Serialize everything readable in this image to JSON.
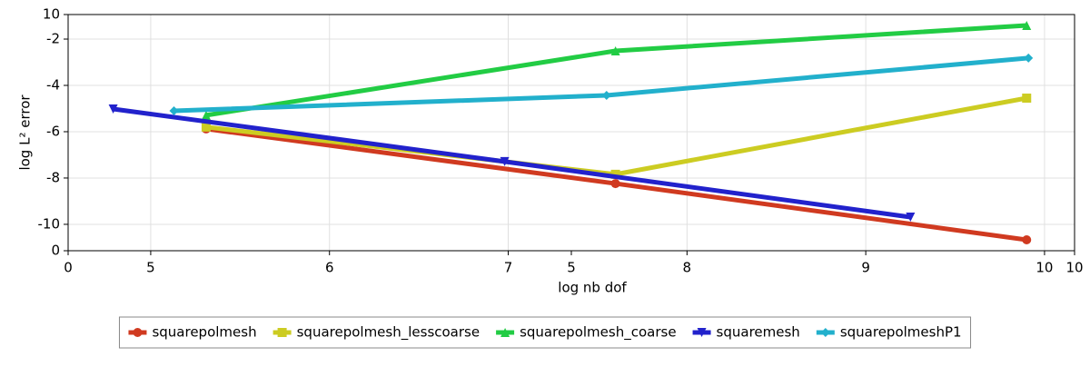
{
  "chart_data": {
    "type": "line",
    "xlabel": "log nb dof",
    "ylabel": "log L² error",
    "xlim": [
      4.538,
      10.168
    ],
    "xticks": [
      5,
      6,
      7,
      8,
      9,
      10
    ],
    "ylim": [
      -11.14,
      -0.94
    ],
    "yticks": [
      -2,
      -4,
      -6,
      -8,
      -10
    ],
    "x2lim": [
      0,
      10
    ],
    "x2ticks": [
      0,
      5,
      10
    ],
    "y2lim": [
      0,
      10
    ],
    "y2ticks": [
      0,
      10
    ],
    "grid": true,
    "legend": "bottom",
    "series": [
      {
        "name": "squarepolmesh",
        "color": "#d03a20",
        "marker": "circle",
        "x": [
          5.31,
          7.6,
          9.9
        ],
        "values": [
          -5.88,
          -8.24,
          -10.67
        ]
      },
      {
        "name": "squarepolmesh_lesscoarse",
        "color": "#cccc22",
        "marker": "square",
        "x": [
          5.31,
          7.6,
          9.9
        ],
        "values": [
          -5.8,
          -7.84,
          -4.55
        ]
      },
      {
        "name": "squarepolmesh_coarse",
        "color": "#22cc44",
        "marker": "triangle-up",
        "x": [
          5.31,
          7.6,
          9.9
        ],
        "values": [
          -5.29,
          -2.51,
          -1.41
        ]
      },
      {
        "name": "squaremesh",
        "color": "#2222cc",
        "marker": "triangle-down",
        "x": [
          4.79,
          6.98,
          9.25
        ],
        "values": [
          -5.02,
          -7.29,
          -9.69
        ]
      },
      {
        "name": "squarepolmeshP1",
        "color": "#22b0cc",
        "marker": "diamond",
        "x": [
          5.13,
          7.55,
          9.91
        ],
        "values": [
          -5.1,
          -4.43,
          -2.82
        ]
      }
    ]
  }
}
